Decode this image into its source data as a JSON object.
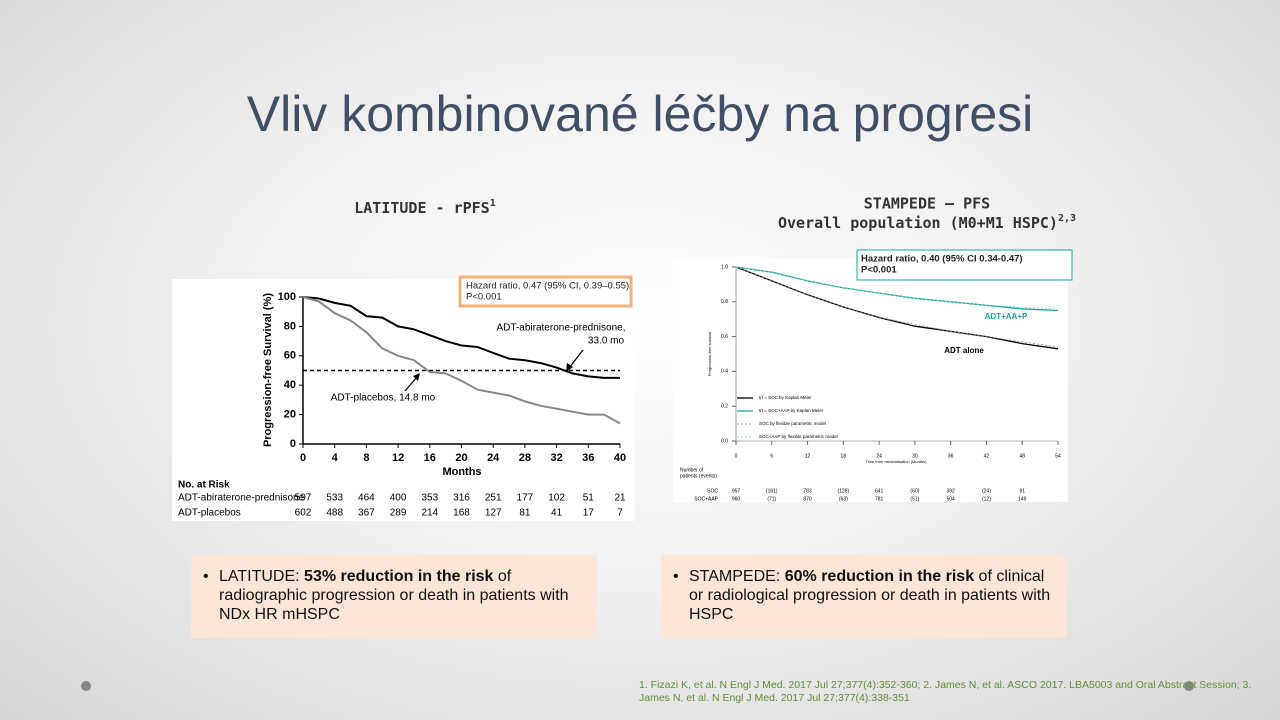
{
  "title": "Vliv kombinované léčby na progresi",
  "panels": [
    {
      "heading": [
        "LATITUDE - rPFS"
      ],
      "sup": "1"
    },
    {
      "heading": [
        "STAMPEDE – PFS",
        "Overall population (M0+M1 HSPC)"
      ],
      "sup": "2,3"
    }
  ],
  "bullets": [
    {
      "prefix": "LATITUDE: ",
      "bold": "53% reduction in the risk",
      "rest": " of radiographic progression or death in patients with NDx HR mHSPC"
    },
    {
      "prefix": "STAMPEDE: ",
      "bold": "60% reduction in the risk",
      "rest": " of clinical or radiological progression or death in patients with HSPC"
    }
  ],
  "footnote": "1. Fizazi K, et al. N Engl J Med. 2017 Jul 27;377(4):352-360; 2. James N, et al. ASCO 2017. LBA5003 and Oral Abstract Session; 3. James N, et al. N Engl J Med. 2017 Jul 27;377(4):338-351",
  "chart_data": [
    {
      "type": "line",
      "x_label": "Months",
      "y_label": "Progression-free Survival (%)",
      "x": [
        0,
        2,
        4,
        6,
        8,
        10,
        12,
        14,
        16,
        18,
        20,
        22,
        24,
        26,
        28,
        30,
        32,
        34,
        36,
        38,
        40
      ],
      "series": [
        {
          "name": "ADT-abiraterone-prednisone",
          "color": "#000000",
          "values": [
            100,
            99,
            96,
            94,
            87,
            86,
            80,
            78,
            74,
            70,
            67,
            66,
            62,
            58,
            57,
            55,
            52,
            48,
            46,
            45,
            45
          ]
        },
        {
          "name": "ADT-placebos",
          "color": "#888888",
          "values": [
            100,
            97,
            89,
            84,
            76,
            65,
            60,
            57,
            49,
            48,
            43,
            37,
            35,
            33,
            29,
            26,
            24,
            22,
            20,
            20,
            14
          ]
        }
      ],
      "reference_line": 50,
      "xlim": [
        0,
        40
      ],
      "xticks": [
        0,
        4,
        8,
        12,
        16,
        20,
        24,
        28,
        32,
        36,
        40
      ],
      "ylim": [
        0,
        100
      ],
      "yticks": [
        0,
        20,
        40,
        60,
        80,
        100
      ],
      "annotations": [
        "ADT-abiraterone-prednisone,",
        "33.0 mo",
        "ADT-placebos, 14.8 mo"
      ],
      "hazard_box": [
        "Hazard ratio, 0.47 (95% CI, 0.39–0.55)",
        "P<0.001"
      ],
      "risk_table": {
        "header": "No. at Risk",
        "rows": [
          {
            "label": "ADT-abiraterone-prednisone",
            "counts": [
              "597",
              "533",
              "464",
              "400",
              "353",
              "316",
              "251",
              "177",
              "102",
              "51",
              "21"
            ]
          },
          {
            "label": "ADT-placebos",
            "counts": [
              "602",
              "488",
              "367",
              "289",
              "214",
              "168",
              "127",
              "81",
              "41",
              "17",
              "7"
            ]
          }
        ]
      }
    },
    {
      "type": "line",
      "x_label": "Time from randomisation (Months)",
      "y_label": "Progression-free survival",
      "x": [
        0,
        6,
        12,
        18,
        24,
        30,
        36,
        42,
        48,
        54
      ],
      "series": [
        {
          "name": "trt = SOC by Kaplan Meier",
          "color": "#000000",
          "values": [
            1,
            0.92,
            0.84,
            0.77,
            0.71,
            0.66,
            0.63,
            0.6,
            0.56,
            0.53
          ]
        },
        {
          "name": "trt = SOC+AAP by Kaplan Meier",
          "color": "#1aa39a",
          "values": [
            1,
            0.97,
            0.92,
            0.88,
            0.85,
            0.82,
            0.8,
            0.78,
            0.76,
            0.75
          ]
        },
        {
          "name": "SOC by flexible parametric model",
          "color": "#888888",
          "dashed": true,
          "values": [
            1,
            0.92,
            0.84,
            0.77,
            0.71,
            0.67,
            0.63,
            0.6,
            0.57,
            0.54
          ]
        },
        {
          "name": "SOC+AAP by flexible parametric model",
          "color": "#8fd6cf",
          "dashed": true,
          "values": [
            1,
            0.97,
            0.92,
            0.88,
            0.85,
            0.82,
            0.8,
            0.78,
            0.77,
            0.76
          ]
        }
      ],
      "xlim": [
        0,
        54
      ],
      "xticks": [
        0,
        6,
        12,
        18,
        24,
        30,
        36,
        42,
        48,
        54
      ],
      "ylim": [
        0,
        1
      ],
      "yticks": [
        {
          "value": 0,
          "label": "0.0"
        },
        0.2,
        0.4,
        0.6,
        0.8,
        {
          "value": 1,
          "label": "1.0"
        }
      ],
      "annotations": [
        "ADT+AA+P",
        "ADT alone"
      ],
      "hazard_box": [
        "Hazard ratio, 0.40 (95% CI 0.34-0.47)",
        "P<0.001"
      ],
      "risk_table": {
        "header": [
          "Number of",
          "patients (events)"
        ],
        "rows": [
          {
            "label": "SOC",
            "counts": [
              "957",
              "(161)",
              "783",
              "(128)",
              "641",
              "(60)",
              "392",
              "(24)",
              "91"
            ]
          },
          {
            "label": "SOC+AAP",
            "counts": [
              "960",
              "(71)",
              "870",
              "(63)",
              "781",
              "(51)",
              "504",
              "(12)",
              "149"
            ]
          }
        ]
      }
    }
  ]
}
